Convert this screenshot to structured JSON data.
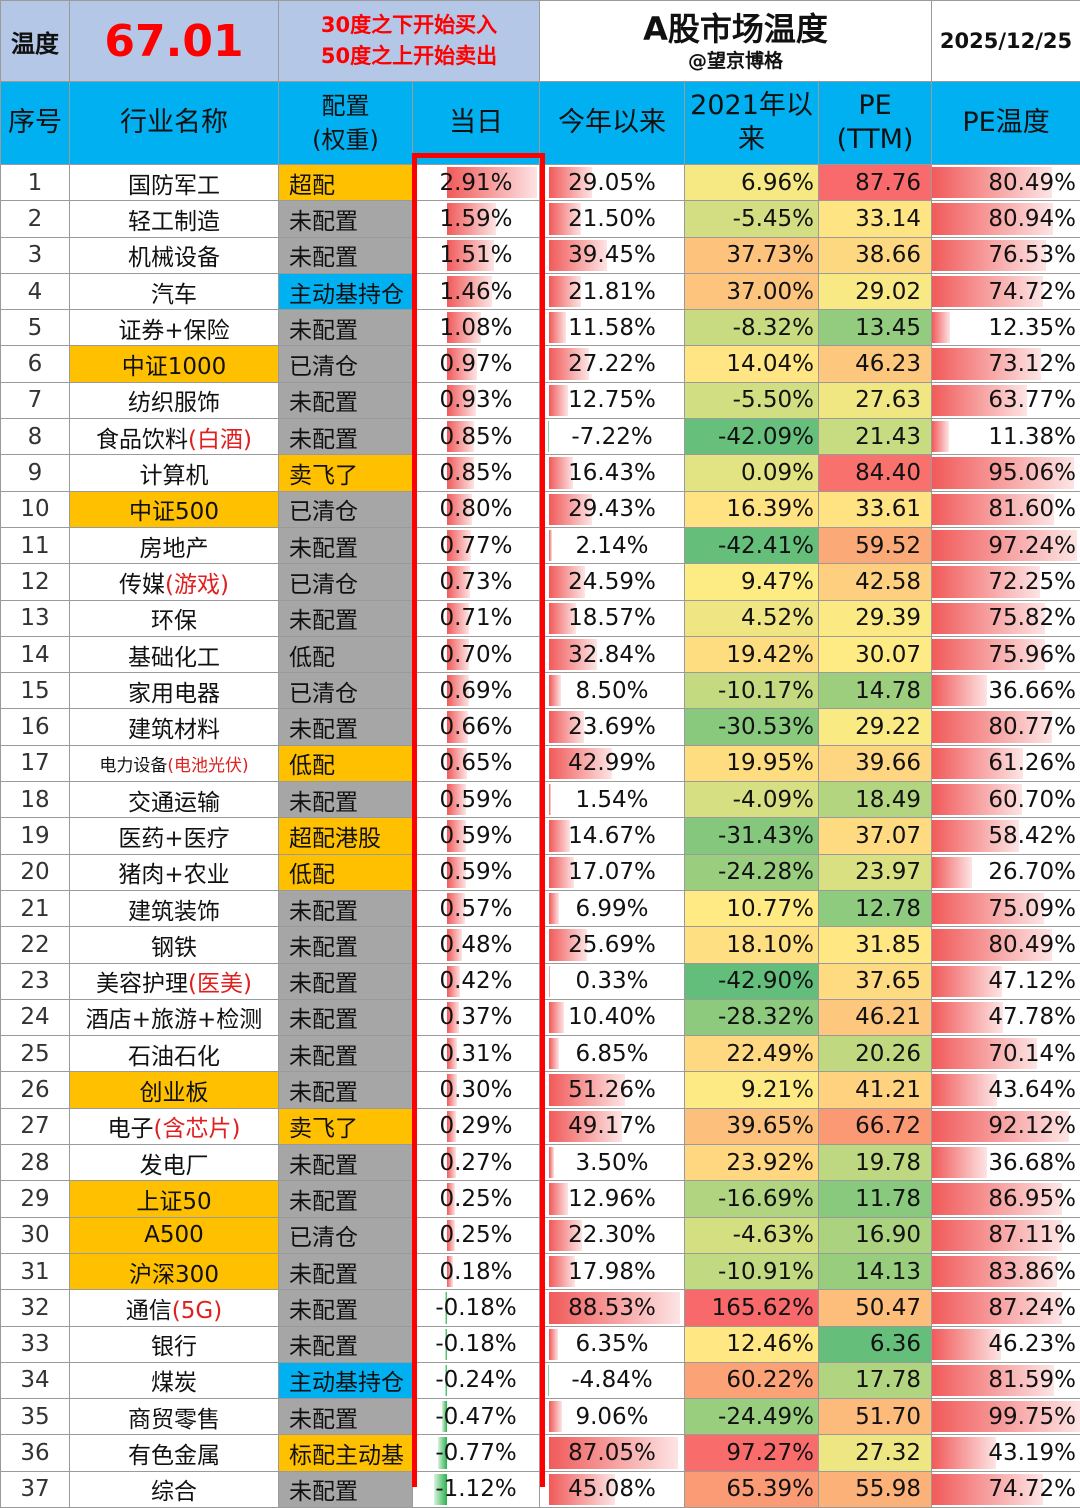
{
  "top": {
    "temp_label": "温度",
    "temp_value": "67.01",
    "note_line1": "30度之下开始买入",
    "note_line2": "50度之上开始卖出",
    "title": "A股市场温度",
    "author": "@望京博格",
    "date": "2025/12/25"
  },
  "headers": {
    "idx": "序号",
    "name": "行业名称",
    "cfg_line1": "配置",
    "cfg_line2": "(权重)",
    "today": "当日",
    "ytd": "今年以来",
    "since2021_line1": "2021年以",
    "since2021_line2": "来",
    "pe_line1": "PE",
    "pe_line2": "(TTM)",
    "pe_temp": "PE温度"
  },
  "colors": {
    "header_blue": "#00b0f0",
    "top_blue": "#b4c7e7",
    "highlight_orange": "#ffc000",
    "config_gray": "#a6a6a6",
    "accent_red": "#ff0000"
  },
  "rows": [
    {
      "idx": "1",
      "name": "国防军工",
      "name_red": "",
      "name_hl": false,
      "cfg": "超配",
      "cfg_hl": "orange",
      "today": "2.91%",
      "today_v": 2.91,
      "ytd": "29.05%",
      "ytd_v": 29.05,
      "since": "6.96%",
      "since_v": 6.96,
      "pe": "87.76",
      "pe_v": 87.76,
      "temp": "80.49%",
      "temp_v": 80.49
    },
    {
      "idx": "2",
      "name": "轻工制造",
      "name_red": "",
      "name_hl": false,
      "cfg": "未配置",
      "cfg_hl": "",
      "today": "1.59%",
      "today_v": 1.59,
      "ytd": "21.50%",
      "ytd_v": 21.5,
      "since": "-5.45%",
      "since_v": -5.45,
      "pe": "33.14",
      "pe_v": 33.14,
      "temp": "80.94%",
      "temp_v": 80.94
    },
    {
      "idx": "3",
      "name": "机械设备",
      "name_red": "",
      "name_hl": false,
      "cfg": "未配置",
      "cfg_hl": "",
      "today": "1.51%",
      "today_v": 1.51,
      "ytd": "39.45%",
      "ytd_v": 39.45,
      "since": "37.73%",
      "since_v": 37.73,
      "pe": "38.66",
      "pe_v": 38.66,
      "temp": "76.53%",
      "temp_v": 76.53
    },
    {
      "idx": "4",
      "name": "汽车",
      "name_red": "",
      "name_hl": false,
      "cfg": "主动基持仓",
      "cfg_hl": "blue",
      "today": "1.46%",
      "today_v": 1.46,
      "ytd": "21.81%",
      "ytd_v": 21.81,
      "since": "37.00%",
      "since_v": 37.0,
      "pe": "29.02",
      "pe_v": 29.02,
      "temp": "74.72%",
      "temp_v": 74.72
    },
    {
      "idx": "5",
      "name": "证券+保险",
      "name_red": "",
      "name_hl": false,
      "cfg": "未配置",
      "cfg_hl": "",
      "today": "1.08%",
      "today_v": 1.08,
      "ytd": "11.58%",
      "ytd_v": 11.58,
      "since": "-8.32%",
      "since_v": -8.32,
      "pe": "13.45",
      "pe_v": 13.45,
      "temp": "12.35%",
      "temp_v": 12.35
    },
    {
      "idx": "6",
      "name": "中证1000",
      "name_red": "",
      "name_hl": true,
      "cfg": "已清仓",
      "cfg_hl": "",
      "today": "0.97%",
      "today_v": 0.97,
      "ytd": "27.22%",
      "ytd_v": 27.22,
      "since": "14.04%",
      "since_v": 14.04,
      "pe": "46.23",
      "pe_v": 46.23,
      "temp": "73.12%",
      "temp_v": 73.12
    },
    {
      "idx": "7",
      "name": "纺织服饰",
      "name_red": "",
      "name_hl": false,
      "cfg": "未配置",
      "cfg_hl": "",
      "today": "0.93%",
      "today_v": 0.93,
      "ytd": "12.75%",
      "ytd_v": 12.75,
      "since": "-5.50%",
      "since_v": -5.5,
      "pe": "27.63",
      "pe_v": 27.63,
      "temp": "63.77%",
      "temp_v": 63.77
    },
    {
      "idx": "8",
      "name": "食品饮料",
      "name_red": "(白酒)",
      "name_hl": false,
      "cfg": "未配置",
      "cfg_hl": "",
      "today": "0.85%",
      "today_v": 0.85,
      "ytd": "-7.22%",
      "ytd_v": -7.22,
      "since": "-42.09%",
      "since_v": -42.09,
      "pe": "21.43",
      "pe_v": 21.43,
      "temp": "11.38%",
      "temp_v": 11.38
    },
    {
      "idx": "9",
      "name": "计算机",
      "name_red": "",
      "name_hl": false,
      "cfg": "卖飞了",
      "cfg_hl": "orange",
      "today": "0.85%",
      "today_v": 0.85,
      "ytd": "16.43%",
      "ytd_v": 16.43,
      "since": "0.09%",
      "since_v": 0.09,
      "pe": "84.40",
      "pe_v": 84.4,
      "temp": "95.06%",
      "temp_v": 95.06
    },
    {
      "idx": "10",
      "name": "中证500",
      "name_red": "",
      "name_hl": true,
      "cfg": "已清仓",
      "cfg_hl": "",
      "today": "0.80%",
      "today_v": 0.8,
      "ytd": "29.43%",
      "ytd_v": 29.43,
      "since": "16.39%",
      "since_v": 16.39,
      "pe": "33.61",
      "pe_v": 33.61,
      "temp": "81.60%",
      "temp_v": 81.6
    },
    {
      "idx": "11",
      "name": "房地产",
      "name_red": "",
      "name_hl": false,
      "cfg": "未配置",
      "cfg_hl": "",
      "today": "0.77%",
      "today_v": 0.77,
      "ytd": "2.14%",
      "ytd_v": 2.14,
      "since": "-42.41%",
      "since_v": -42.41,
      "pe": "59.52",
      "pe_v": 59.52,
      "temp": "97.24%",
      "temp_v": 97.24
    },
    {
      "idx": "12",
      "name": "传媒",
      "name_red": "(游戏)",
      "name_hl": false,
      "cfg": "已清仓",
      "cfg_hl": "",
      "today": "0.73%",
      "today_v": 0.73,
      "ytd": "24.59%",
      "ytd_v": 24.59,
      "since": "9.47%",
      "since_v": 9.47,
      "pe": "42.58",
      "pe_v": 42.58,
      "temp": "72.25%",
      "temp_v": 72.25
    },
    {
      "idx": "13",
      "name": "环保",
      "name_red": "",
      "name_hl": false,
      "cfg": "未配置",
      "cfg_hl": "",
      "today": "0.71%",
      "today_v": 0.71,
      "ytd": "18.57%",
      "ytd_v": 18.57,
      "since": "4.52%",
      "since_v": 4.52,
      "pe": "29.39",
      "pe_v": 29.39,
      "temp": "75.82%",
      "temp_v": 75.82
    },
    {
      "idx": "14",
      "name": "基础化工",
      "name_red": "",
      "name_hl": false,
      "cfg": "低配",
      "cfg_hl": "",
      "today": "0.70%",
      "today_v": 0.7,
      "ytd": "32.84%",
      "ytd_v": 32.84,
      "since": "19.42%",
      "since_v": 19.42,
      "pe": "30.07",
      "pe_v": 30.07,
      "temp": "75.96%",
      "temp_v": 75.96
    },
    {
      "idx": "15",
      "name": "家用电器",
      "name_red": "",
      "name_hl": false,
      "cfg": "已清仓",
      "cfg_hl": "",
      "today": "0.69%",
      "today_v": 0.69,
      "ytd": "8.50%",
      "ytd_v": 8.5,
      "since": "-10.17%",
      "since_v": -10.17,
      "pe": "14.78",
      "pe_v": 14.78,
      "temp": "36.66%",
      "temp_v": 36.66
    },
    {
      "idx": "16",
      "name": "建筑材料",
      "name_red": "",
      "name_hl": false,
      "cfg": "未配置",
      "cfg_hl": "",
      "today": "0.66%",
      "today_v": 0.66,
      "ytd": "23.69%",
      "ytd_v": 23.69,
      "since": "-30.53%",
      "since_v": -30.53,
      "pe": "29.22",
      "pe_v": 29.22,
      "temp": "80.77%",
      "temp_v": 80.77
    },
    {
      "idx": "17",
      "name": "电力设备",
      "name_red": "(电池光伏)",
      "name_hl": false,
      "name_small": true,
      "cfg": "低配",
      "cfg_hl": "orange",
      "today": "0.65%",
      "today_v": 0.65,
      "ytd": "42.99%",
      "ytd_v": 42.99,
      "since": "19.95%",
      "since_v": 19.95,
      "pe": "39.66",
      "pe_v": 39.66,
      "temp": "61.26%",
      "temp_v": 61.26
    },
    {
      "idx": "18",
      "name": "交通运输",
      "name_red": "",
      "name_hl": false,
      "cfg": "未配置",
      "cfg_hl": "",
      "today": "0.59%",
      "today_v": 0.59,
      "ytd": "1.54%",
      "ytd_v": 1.54,
      "since": "-4.09%",
      "since_v": -4.09,
      "pe": "18.49",
      "pe_v": 18.49,
      "temp": "60.70%",
      "temp_v": 60.7
    },
    {
      "idx": "19",
      "name": "医药+医疗",
      "name_red": "",
      "name_hl": false,
      "cfg": "超配港股",
      "cfg_hl": "orange",
      "today": "0.59%",
      "today_v": 0.59,
      "ytd": "14.67%",
      "ytd_v": 14.67,
      "since": "-31.43%",
      "since_v": -31.43,
      "pe": "37.07",
      "pe_v": 37.07,
      "temp": "58.42%",
      "temp_v": 58.42
    },
    {
      "idx": "20",
      "name": "猪肉+农业",
      "name_red": "",
      "name_hl": false,
      "cfg": "低配",
      "cfg_hl": "orange",
      "today": "0.59%",
      "today_v": 0.59,
      "ytd": "17.07%",
      "ytd_v": 17.07,
      "since": "-24.28%",
      "since_v": -24.28,
      "pe": "23.97",
      "pe_v": 23.97,
      "temp": "26.70%",
      "temp_v": 26.7
    },
    {
      "idx": "21",
      "name": "建筑装饰",
      "name_red": "",
      "name_hl": false,
      "cfg": "未配置",
      "cfg_hl": "",
      "today": "0.57%",
      "today_v": 0.57,
      "ytd": "6.99%",
      "ytd_v": 6.99,
      "since": "10.77%",
      "since_v": 10.77,
      "pe": "12.78",
      "pe_v": 12.78,
      "temp": "75.09%",
      "temp_v": 75.09
    },
    {
      "idx": "22",
      "name": "钢铁",
      "name_red": "",
      "name_hl": false,
      "cfg": "未配置",
      "cfg_hl": "",
      "today": "0.48%",
      "today_v": 0.48,
      "ytd": "25.69%",
      "ytd_v": 25.69,
      "since": "18.10%",
      "since_v": 18.1,
      "pe": "31.85",
      "pe_v": 31.85,
      "temp": "80.49%",
      "temp_v": 80.49
    },
    {
      "idx": "23",
      "name": "美容护理",
      "name_red": "(医美)",
      "name_hl": false,
      "cfg": "未配置",
      "cfg_hl": "",
      "today": "0.42%",
      "today_v": 0.42,
      "ytd": "0.33%",
      "ytd_v": 0.33,
      "since": "-42.90%",
      "since_v": -42.9,
      "pe": "37.65",
      "pe_v": 37.65,
      "temp": "47.12%",
      "temp_v": 47.12
    },
    {
      "idx": "24",
      "name": "酒店+旅游+检测",
      "name_red": "",
      "name_hl": false,
      "cfg": "未配置",
      "cfg_hl": "",
      "today": "0.37%",
      "today_v": 0.37,
      "ytd": "10.40%",
      "ytd_v": 10.4,
      "since": "-28.32%",
      "since_v": -28.32,
      "pe": "46.21",
      "pe_v": 46.21,
      "temp": "47.78%",
      "temp_v": 47.78
    },
    {
      "idx": "25",
      "name": "石油石化",
      "name_red": "",
      "name_hl": false,
      "cfg": "未配置",
      "cfg_hl": "",
      "today": "0.31%",
      "today_v": 0.31,
      "ytd": "6.85%",
      "ytd_v": 6.85,
      "since": "22.49%",
      "since_v": 22.49,
      "pe": "20.26",
      "pe_v": 20.26,
      "temp": "70.14%",
      "temp_v": 70.14
    },
    {
      "idx": "26",
      "name": "创业板",
      "name_red": "",
      "name_hl": true,
      "cfg": "未配置",
      "cfg_hl": "",
      "today": "0.30%",
      "today_v": 0.3,
      "ytd": "51.26%",
      "ytd_v": 51.26,
      "since": "9.21%",
      "since_v": 9.21,
      "pe": "41.21",
      "pe_v": 41.21,
      "temp": "43.64%",
      "temp_v": 43.64
    },
    {
      "idx": "27",
      "name": "电子",
      "name_red": "(含芯片)",
      "name_hl": false,
      "cfg": "卖飞了",
      "cfg_hl": "orange",
      "today": "0.29%",
      "today_v": 0.29,
      "ytd": "49.17%",
      "ytd_v": 49.17,
      "since": "39.65%",
      "since_v": 39.65,
      "pe": "66.72",
      "pe_v": 66.72,
      "temp": "92.12%",
      "temp_v": 92.12
    },
    {
      "idx": "28",
      "name": "发电厂",
      "name_red": "",
      "name_hl": false,
      "cfg": "未配置",
      "cfg_hl": "",
      "today": "0.27%",
      "today_v": 0.27,
      "ytd": "3.50%",
      "ytd_v": 3.5,
      "since": "23.92%",
      "since_v": 23.92,
      "pe": "19.78",
      "pe_v": 19.78,
      "temp": "36.68%",
      "temp_v": 36.68
    },
    {
      "idx": "29",
      "name": "上证50",
      "name_red": "",
      "name_hl": true,
      "cfg": "未配置",
      "cfg_hl": "",
      "today": "0.25%",
      "today_v": 0.25,
      "ytd": "12.96%",
      "ytd_v": 12.96,
      "since": "-16.69%",
      "since_v": -16.69,
      "pe": "11.78",
      "pe_v": 11.78,
      "temp": "86.95%",
      "temp_v": 86.95
    },
    {
      "idx": "30",
      "name": "A500",
      "name_red": "",
      "name_hl": true,
      "cfg": "已清仓",
      "cfg_hl": "",
      "today": "0.25%",
      "today_v": 0.25,
      "ytd": "22.30%",
      "ytd_v": 22.3,
      "since": "-4.63%",
      "since_v": -4.63,
      "pe": "16.90",
      "pe_v": 16.9,
      "temp": "87.11%",
      "temp_v": 87.11
    },
    {
      "idx": "31",
      "name": "沪深300",
      "name_red": "",
      "name_hl": true,
      "cfg": "未配置",
      "cfg_hl": "",
      "today": "0.18%",
      "today_v": 0.18,
      "ytd": "17.98%",
      "ytd_v": 17.98,
      "since": "-10.91%",
      "since_v": -10.91,
      "pe": "14.13",
      "pe_v": 14.13,
      "temp": "83.86%",
      "temp_v": 83.86
    },
    {
      "idx": "32",
      "name": "通信",
      "name_red": "(5G)",
      "name_hl": false,
      "cfg": "未配置",
      "cfg_hl": "",
      "today": "-0.18%",
      "today_v": -0.18,
      "ytd": "88.53%",
      "ytd_v": 88.53,
      "since": "165.62%",
      "since_v": 165.62,
      "pe": "50.47",
      "pe_v": 50.47,
      "temp": "87.24%",
      "temp_v": 87.24
    },
    {
      "idx": "33",
      "name": "银行",
      "name_red": "",
      "name_hl": false,
      "cfg": "未配置",
      "cfg_hl": "",
      "today": "-0.18%",
      "today_v": -0.18,
      "ytd": "6.35%",
      "ytd_v": 6.35,
      "since": "12.46%",
      "since_v": 12.46,
      "pe": "6.36",
      "pe_v": 6.36,
      "temp": "46.23%",
      "temp_v": 46.23
    },
    {
      "idx": "34",
      "name": "煤炭",
      "name_red": "",
      "name_hl": false,
      "cfg": "主动基持仓",
      "cfg_hl": "blue",
      "today": "-0.24%",
      "today_v": -0.24,
      "ytd": "-4.84%",
      "ytd_v": -4.84,
      "since": "60.22%",
      "since_v": 60.22,
      "pe": "17.78",
      "pe_v": 17.78,
      "temp": "81.59%",
      "temp_v": 81.59
    },
    {
      "idx": "35",
      "name": "商贸零售",
      "name_red": "",
      "name_hl": false,
      "cfg": "未配置",
      "cfg_hl": "",
      "today": "-0.47%",
      "today_v": -0.47,
      "ytd": "9.06%",
      "ytd_v": 9.06,
      "since": "-24.49%",
      "since_v": -24.49,
      "pe": "51.70",
      "pe_v": 51.7,
      "temp": "99.75%",
      "temp_v": 99.75
    },
    {
      "idx": "36",
      "name": "有色金属",
      "name_red": "",
      "name_hl": false,
      "cfg": "标配主动基",
      "cfg_hl": "orange",
      "today": "-0.77%",
      "today_v": -0.77,
      "ytd": "87.05%",
      "ytd_v": 87.05,
      "since": "97.27%",
      "since_v": 97.27,
      "pe": "27.32",
      "pe_v": 27.32,
      "temp": "43.19%",
      "temp_v": 43.19
    },
    {
      "idx": "37",
      "name": "综合",
      "name_red": "",
      "name_hl": false,
      "cfg": "未配置",
      "cfg_hl": "",
      "today": "-1.12%",
      "today_v": -1.12,
      "ytd": "45.08%",
      "ytd_v": 45.08,
      "since": "65.39%",
      "since_v": 65.39,
      "pe": "55.98",
      "pe_v": 55.98,
      "temp": "74.72%",
      "temp_v": 74.72
    }
  ]
}
